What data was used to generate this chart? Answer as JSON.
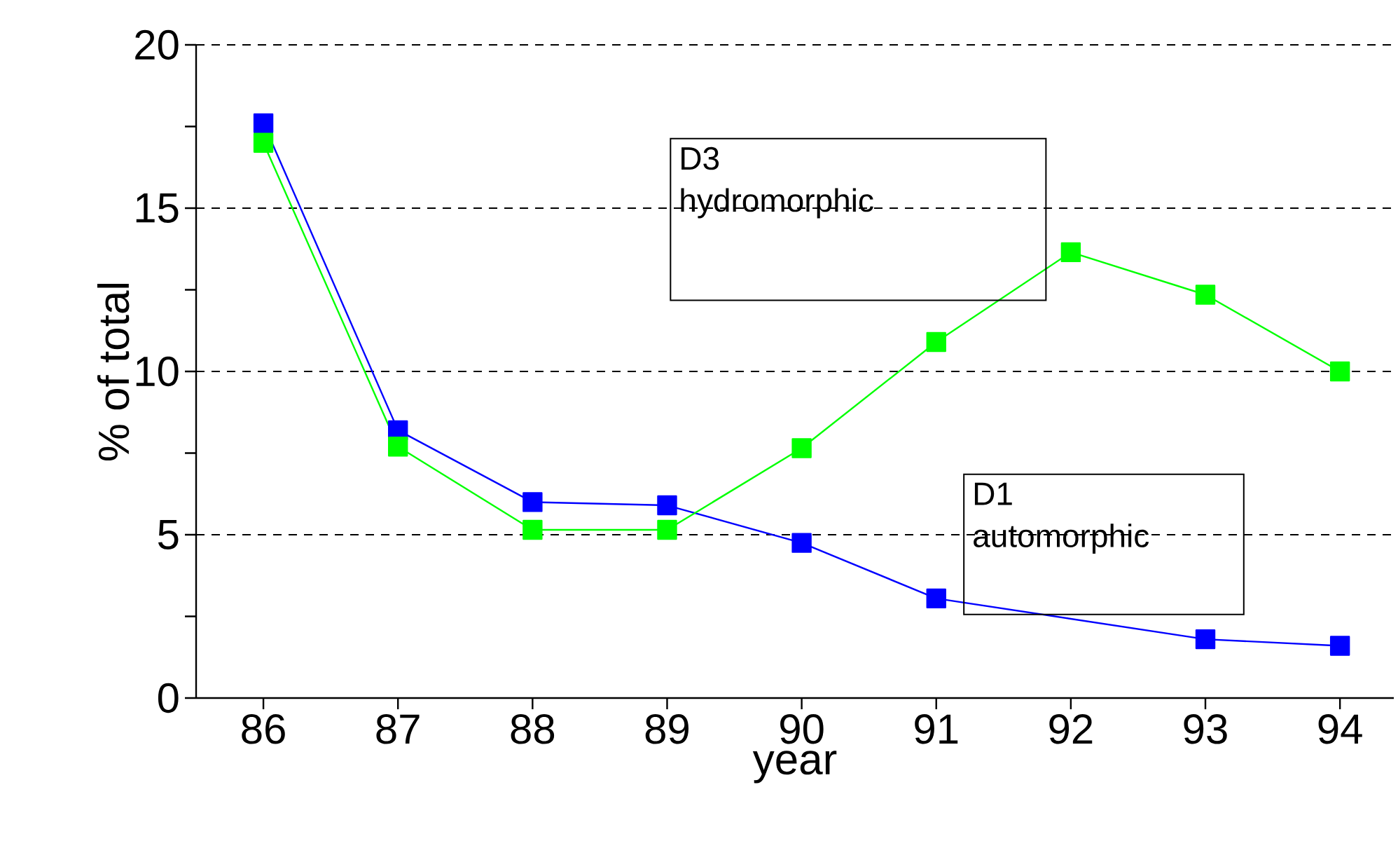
{
  "chart_data": {
    "type": "line",
    "xlabel": "year",
    "ylabel": "% of total",
    "x": [
      86,
      87,
      88,
      89,
      90,
      91,
      92,
      93,
      94
    ],
    "series": [
      {
        "color": "#0000ff",
        "values": [
          17.6,
          8.2,
          6.0,
          5.9,
          4.75,
          3.05,
          null,
          1.8,
          1.6
        ]
      },
      {
        "color": "#00ff00",
        "values": [
          17.0,
          7.7,
          5.15,
          5.15,
          7.65,
          10.9,
          13.65,
          12.35,
          10.0
        ]
      }
    ],
    "annotations": [
      "D3 hydromorphic",
      "D1 automorphic"
    ],
    "xlim": [
      85.5,
      94.4
    ],
    "ylim": [
      0,
      20
    ],
    "xticks": [
      86,
      87,
      88,
      89,
      90,
      91,
      92,
      93,
      94
    ],
    "yticks": [
      0,
      5,
      10,
      15,
      20
    ],
    "grid": "y",
    "marker": "square",
    "line_style": "solid"
  }
}
